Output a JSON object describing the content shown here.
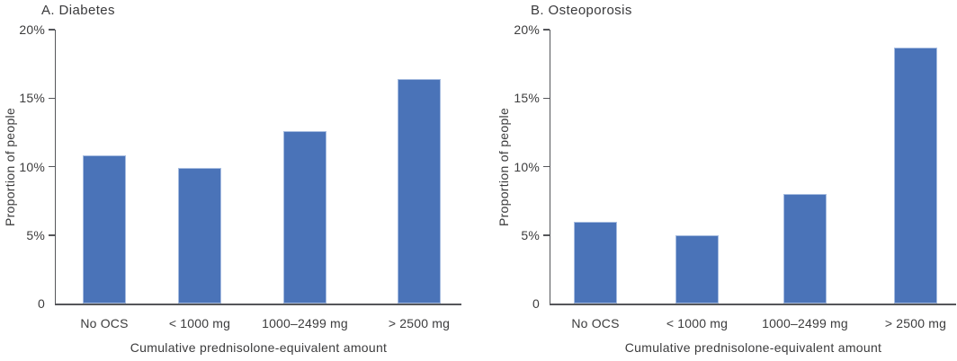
{
  "chart_data": [
    {
      "type": "bar",
      "title": "A. Diabetes",
      "categories": [
        "No OCS",
        "< 1000 mg",
        "1000–2499 mg",
        "> 2500 mg"
      ],
      "values": [
        10.8,
        9.9,
        12.6,
        16.4
      ],
      "values_unit": "%",
      "xlabel": "Cumulative prednisolone-equivalent amount",
      "ylabel": "Proportion of people",
      "ylim": [
        0,
        20
      ],
      "yticks": [
        "20%",
        "15%",
        "10%",
        "5%",
        "0"
      ],
      "grid": false,
      "legend": "none",
      "bar_color": "#4A73B8",
      "bar_border_color": "#A6BCE0"
    },
    {
      "type": "bar",
      "title": "B. Osteoporosis",
      "categories": [
        "No OCS",
        "< 1000 mg",
        "1000–2499 mg",
        "> 2500 mg"
      ],
      "values": [
        6.0,
        5.0,
        8.0,
        18.7
      ],
      "values_unit": "%",
      "xlabel": "Cumulative prednisolone-equivalent amount",
      "ylabel": "Proportion of people",
      "ylim": [
        0,
        20
      ],
      "yticks": [
        "20%",
        "15%",
        "10%",
        "5%",
        "0"
      ],
      "grid": false,
      "legend": "none",
      "bar_color": "#4A73B8",
      "bar_border_color": "#A6BCE0"
    }
  ],
  "colors": {
    "bar_fill": "#4A73B8",
    "bar_border": "#A6BCE0",
    "axis": "#55565A",
    "text": "#3C3C3D",
    "background": "#FFFFFF"
  }
}
